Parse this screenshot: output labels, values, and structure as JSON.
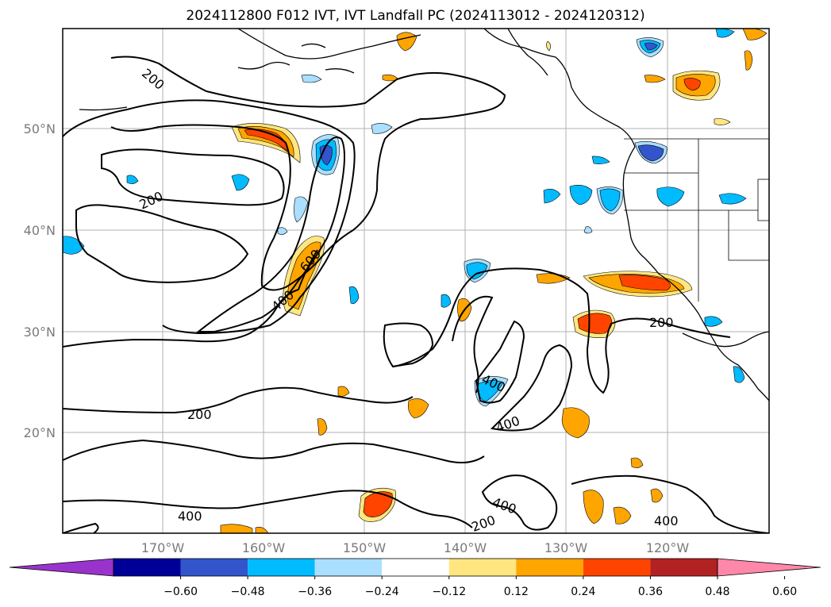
{
  "title": "2024112800 F012 IVT, IVT Landfall PC (2024113012 - 2024120312)",
  "lat_labels": [
    "50°N",
    "40°N",
    "30°N",
    "20°N"
  ],
  "lon_labels": [
    "170°W",
    "160°W",
    "150°W",
    "140°W",
    "130°W",
    "120°W"
  ],
  "colorbar": {
    "ticks": [
      "−0.60",
      "−0.48",
      "−0.36",
      "−0.24",
      "−0.12",
      "0.12",
      "0.24",
      "0.36",
      "0.48",
      "0.60"
    ],
    "colors": [
      "#9933cc",
      "#000099",
      "#3355cc",
      "#00bbff",
      "#aadfff",
      "#ffffff",
      "#ffe680",
      "#ffa500",
      "#ff4400",
      "#b22222",
      "#ff88aa"
    ]
  },
  "contour_labels": [
    "200",
    "200",
    "200",
    "200",
    "200",
    "400",
    "600",
    "400",
    "400",
    "400",
    "400",
    "200",
    "400"
  ]
}
